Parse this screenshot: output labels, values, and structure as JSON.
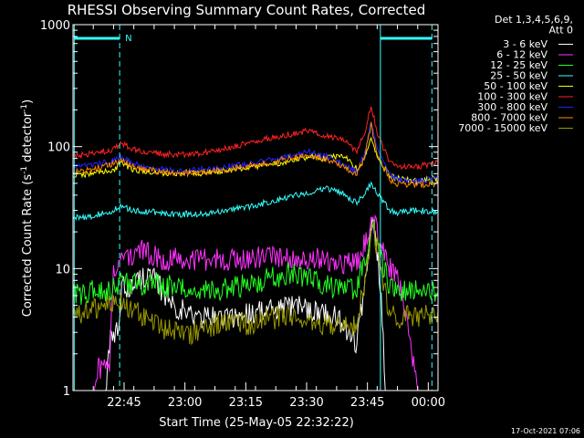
{
  "chart_data": {
    "type": "line",
    "title": "RHESSI Observing Summary Count Rates, Corrected",
    "xlabel": "Start Time (25-May-05 22:32:22)",
    "ylabel_main": "Corrected Count Rate (s",
    "ylabel_sup1": "-1",
    "ylabel_mid": " detector",
    "ylabel_sup2": "-1",
    "ylabel_end": ")",
    "y_scale": "log",
    "xlim_minutes": [
      0,
      90
    ],
    "ylim": [
      1,
      1000
    ],
    "x_ticks": [
      {
        "m": 12.6,
        "label": "22:45"
      },
      {
        "m": 27.6,
        "label": "23:00"
      },
      {
        "m": 42.6,
        "label": "23:15"
      },
      {
        "m": 57.6,
        "label": "23:30"
      },
      {
        "m": 72.6,
        "label": "23:45"
      },
      {
        "m": 87.6,
        "label": "00:00"
      }
    ],
    "y_ticks": [
      {
        "v": 1,
        "label": "1"
      },
      {
        "v": 10,
        "label": "10"
      },
      {
        "v": 100,
        "label": "100"
      },
      {
        "v": 1000,
        "label": "1000"
      }
    ],
    "legend_header": [
      "Det 1,3,4,5,6,9,",
      "Att 0"
    ],
    "legend_position": "right",
    "night_marker": "N",
    "night_lines_minutes": [
      0.3,
      11.5,
      75.8,
      88.5
    ],
    "night_bars": [
      [
        0.3,
        11.5
      ],
      [
        75.8,
        88.5
      ]
    ],
    "series": [
      {
        "name": "3 - 6 keV",
        "color": "#ffffff",
        "x": [
          0,
          5,
          8,
          9,
          10,
          11.5,
          12,
          14,
          18,
          20,
          25,
          30,
          35,
          40,
          45,
          50,
          55,
          60,
          65,
          70,
          72,
          73,
          74,
          75,
          76,
          77,
          80,
          85,
          88,
          90
        ],
        "y": [
          1,
          1,
          1,
          2.5,
          2.5,
          3.5,
          7,
          7,
          9,
          8,
          5,
          4,
          4,
          4,
          4.5,
          4.5,
          5,
          4.5,
          4,
          2.5,
          7,
          15,
          27,
          14,
          6,
          1,
          1,
          1,
          1,
          1
        ]
      },
      {
        "name": "6 - 12 keV",
        "color": "#ff33ff",
        "x": [
          0,
          5,
          6,
          7,
          8,
          9,
          10,
          12,
          16,
          20,
          22,
          30,
          40,
          50,
          55,
          60,
          65,
          70,
          72,
          74,
          76,
          78,
          80,
          85,
          90
        ],
        "y": [
          1,
          1,
          1.5,
          1.5,
          1.5,
          1.5,
          10,
          12,
          14,
          13,
          12,
          12,
          12,
          12.5,
          12.5,
          12,
          11.5,
          11,
          16,
          26,
          16,
          10,
          9.5,
          1,
          1
        ]
      },
      {
        "name": "12 - 25 keV",
        "color": "#22ff22",
        "x": [
          0,
          5,
          8,
          10,
          12,
          15,
          20,
          25,
          30,
          35,
          40,
          45,
          50,
          52,
          55,
          60,
          65,
          70,
          72,
          74,
          76,
          78,
          80,
          85,
          90
        ],
        "y": [
          6,
          6.5,
          6.5,
          7,
          7.5,
          7.5,
          7.5,
          7,
          6.5,
          6.5,
          7,
          7.5,
          8.5,
          9,
          9,
          8,
          7,
          7,
          12,
          22,
          12,
          7,
          6.5,
          6.5,
          6.5
        ]
      },
      {
        "name": "25 - 50 keV",
        "color": "#33ffff",
        "x": [
          0,
          5,
          10,
          12,
          15,
          20,
          25,
          30,
          35,
          40,
          45,
          48,
          52,
          55,
          58,
          62,
          66,
          70,
          72,
          73.5,
          75,
          78,
          80,
          85,
          90
        ],
        "y": [
          26,
          27,
          30,
          32,
          30,
          29,
          28,
          28,
          29,
          31,
          33,
          35,
          38,
          40,
          42,
          46,
          42,
          35,
          40,
          51,
          42,
          30,
          29,
          30,
          29
        ]
      },
      {
        "name": "50 - 100 keV",
        "color": "#ffff00",
        "x": [
          0,
          5,
          10,
          12,
          15,
          20,
          25,
          30,
          35,
          40,
          45,
          50,
          55,
          58,
          62,
          65,
          68,
          70,
          72,
          73.5,
          75,
          78,
          80,
          85,
          90
        ],
        "y": [
          58,
          60,
          65,
          72,
          65,
          62,
          60,
          60,
          62,
          65,
          68,
          73,
          78,
          82,
          80,
          84,
          80,
          65,
          80,
          120,
          80,
          58,
          55,
          52,
          56
        ]
      },
      {
        "name": "100 - 300 keV",
        "color": "#ff2222",
        "x": [
          0,
          5,
          10,
          12,
          15,
          20,
          25,
          30,
          35,
          40,
          45,
          50,
          55,
          58,
          62,
          65,
          68,
          70,
          72,
          73.5,
          75,
          78,
          80,
          85,
          90
        ],
        "y": [
          83,
          87,
          95,
          105,
          95,
          88,
          86,
          88,
          92,
          100,
          110,
          120,
          128,
          135,
          125,
          118,
          105,
          92,
          130,
          220,
          130,
          75,
          68,
          68,
          75
        ]
      },
      {
        "name": "300 - 800 keV",
        "color": "#2222ff",
        "x": [
          0,
          5,
          10,
          12,
          15,
          20,
          25,
          30,
          35,
          40,
          45,
          50,
          55,
          58,
          62,
          65,
          68,
          70,
          72,
          73.5,
          75,
          78,
          80,
          85,
          90
        ],
        "y": [
          68,
          70,
          78,
          82,
          72,
          66,
          64,
          64,
          66,
          70,
          74,
          80,
          86,
          90,
          84,
          76,
          68,
          62,
          90,
          165,
          95,
          58,
          54,
          52,
          55
        ]
      },
      {
        "name": "800 - 7000 keV",
        "color": "#ff8800",
        "x": [
          0,
          5,
          10,
          12,
          15,
          20,
          25,
          30,
          35,
          40,
          45,
          50,
          55,
          58,
          62,
          65,
          68,
          70,
          72,
          73.5,
          75,
          78,
          80,
          85,
          90
        ],
        "y": [
          62,
          65,
          72,
          76,
          68,
          63,
          61,
          61,
          63,
          67,
          71,
          76,
          82,
          86,
          80,
          72,
          65,
          60,
          85,
          150,
          88,
          54,
          50,
          48,
          50
        ]
      },
      {
        "name": "7000 - 15000 keV",
        "color": "#999900",
        "x": [
          0,
          5,
          8,
          10,
          12,
          15,
          20,
          25,
          30,
          35,
          40,
          45,
          50,
          55,
          60,
          65,
          70,
          72,
          74,
          76,
          78,
          80,
          85,
          90
        ],
        "y": [
          4,
          4.5,
          5,
          5.5,
          5,
          4.5,
          3.5,
          3,
          3,
          3.5,
          3.5,
          3.5,
          4,
          4,
          3.5,
          3.5,
          3.5,
          8,
          22,
          10,
          4,
          4,
          4,
          4.5
        ]
      }
    ]
  },
  "footer": {
    "timestamp": "17-Oct-2021 07:06"
  }
}
